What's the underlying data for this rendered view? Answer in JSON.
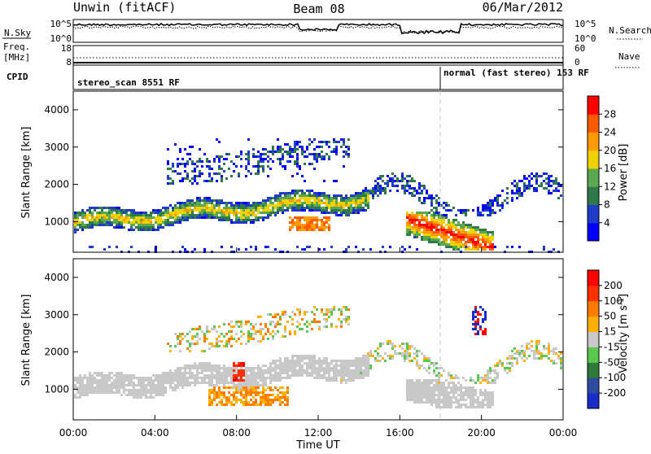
{
  "header": {
    "station": "Unwin (fitACF)",
    "beam": "Beam 08",
    "date": "06/Mar/2012"
  },
  "nsky_panel": {
    "left_label": "N.Sky",
    "right_label": "N.Search",
    "left_ticks": [
      "10^5",
      "10^0"
    ],
    "right_ticks": [
      "10^5",
      "10^0"
    ]
  },
  "freq_panel": {
    "left_label_top": "Freq.",
    "left_label_bottom": "[MHz]",
    "right_label": "Nave",
    "left_ticks": [
      "18",
      "8"
    ],
    "right_ticks": [
      "60",
      "0"
    ]
  },
  "cpid_panel": {
    "label": "CPID",
    "modes": [
      {
        "name": "stereo_scan 8551 RF",
        "start_hour": 0
      },
      {
        "name": "normal (fast stereo) 153 RF",
        "start_hour": 18
      }
    ]
  },
  "chart_data": [
    {
      "type": "heatmap",
      "name": "power",
      "ylabel": "Slant Range [km]",
      "ylim": [
        180,
        4500
      ],
      "yticks": [
        1000,
        2000,
        3000,
        4000
      ],
      "colorbar": {
        "label": "Power [dB]",
        "ticks": [
          "4",
          "8",
          "12",
          "16",
          "20",
          "24",
          "28"
        ],
        "colors": [
          "#0000ff",
          "#1e3cc8",
          "#2f7a4a",
          "#5aa850",
          "#f0d200",
          "#ff9a00",
          "#ff5a00",
          "#ff0000"
        ]
      },
      "features": [
        {
          "desc": "main band",
          "x_hours": [
            0,
            14
          ],
          "range_km": [
            800,
            1500
          ]
        },
        {
          "desc": "upper scatter",
          "x_hours": [
            4,
            13
          ],
          "range_km": [
            2200,
            3300
          ]
        },
        {
          "desc": "strong echo",
          "x_hours": [
            16.5,
            20
          ],
          "range_km": [
            300,
            1200
          ]
        }
      ]
    },
    {
      "type": "heatmap",
      "name": "velocity",
      "ylabel": "Slant Range [km]",
      "xlabel": "Time UT",
      "ylim": [
        180,
        4500
      ],
      "yticks": [
        1000,
        2000,
        3000,
        4000
      ],
      "xticks": [
        "00:00",
        "04:00",
        "08:00",
        "12:00",
        "16:00",
        "20:00",
        "00:00"
      ],
      "xlim_hours": [
        0,
        24
      ],
      "colorbar": {
        "label": "Velocity [m s^-1]",
        "ticks": [
          "200",
          "100",
          "50",
          "15",
          "-15",
          "-50",
          "-100",
          "-200"
        ],
        "colors": [
          "#1a2cc8",
          "#2f4aa0",
          "#2e7a3a",
          "#5ac850",
          "#c8c8c8",
          "#ffb000",
          "#ff7a00",
          "#ff3000",
          "#ff0000"
        ]
      }
    }
  ]
}
